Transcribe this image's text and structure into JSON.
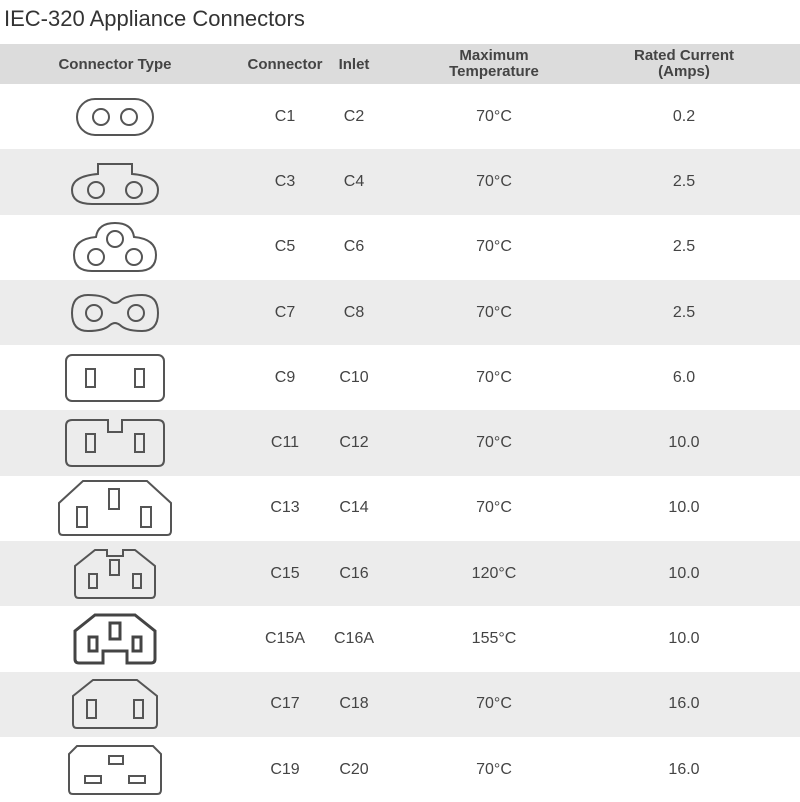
{
  "title": "IEC-320 Appliance Connectors",
  "headers": {
    "type": "Connector Type",
    "connector": "Connector",
    "inlet": "Inlet",
    "temp_1": "Maximum",
    "temp_2": "Temperature",
    "current_1": "Rated Current",
    "current_2": "(Amps)"
  },
  "rows": [
    {
      "icon": "c1-connector-icon",
      "connector": "C1",
      "inlet": "C2",
      "temp": "70°C",
      "current": "0.2"
    },
    {
      "icon": "c3-connector-icon",
      "connector": "C3",
      "inlet": "C4",
      "temp": "70°C",
      "current": "2.5"
    },
    {
      "icon": "c5-connector-icon",
      "connector": "C5",
      "inlet": "C6",
      "temp": "70°C",
      "current": "2.5"
    },
    {
      "icon": "c7-connector-icon",
      "connector": "C7",
      "inlet": "C8",
      "temp": "70°C",
      "current": "2.5"
    },
    {
      "icon": "c9-connector-icon",
      "connector": "C9",
      "inlet": "C10",
      "temp": "70°C",
      "current": "6.0"
    },
    {
      "icon": "c11-connector-icon",
      "connector": "C11",
      "inlet": "C12",
      "temp": "70°C",
      "current": "10.0"
    },
    {
      "icon": "c13-connector-icon",
      "connector": "C13",
      "inlet": "C14",
      "temp": "70°C",
      "current": "10.0"
    },
    {
      "icon": "c15-connector-icon",
      "connector": "C15",
      "inlet": "C16",
      "temp": "120°C",
      "current": "10.0"
    },
    {
      "icon": "c15a-connector-icon",
      "connector": "C15A",
      "inlet": "C16A",
      "temp": "155°C",
      "current": "10.0"
    },
    {
      "icon": "c17-connector-icon",
      "connector": "C17",
      "inlet": "C18",
      "temp": "70°C",
      "current": "16.0"
    },
    {
      "icon": "c19-connector-icon",
      "connector": "C19",
      "inlet": "C20",
      "temp": "70°C",
      "current": "16.0"
    }
  ]
}
